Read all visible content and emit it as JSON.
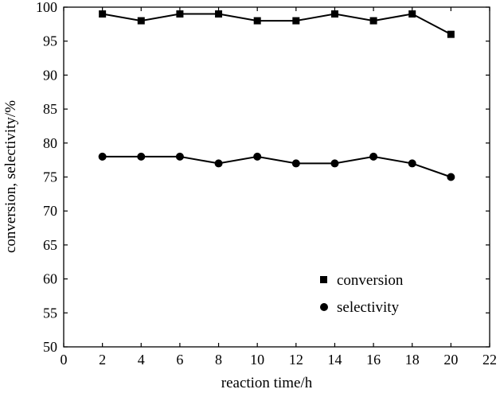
{
  "chart_data": {
    "type": "line",
    "title": "",
    "xlabel": "reaction time/h",
    "ylabel": "conversion, selectivity/%",
    "xlim": [
      0,
      22
    ],
    "ylim": [
      50,
      100
    ],
    "x_ticks": [
      0,
      2,
      4,
      6,
      8,
      10,
      12,
      14,
      16,
      18,
      20,
      22
    ],
    "y_ticks": [
      50,
      55,
      60,
      65,
      70,
      75,
      80,
      85,
      90,
      95,
      100
    ],
    "grid": false,
    "legend_position": "bottom-right",
    "x": [
      2,
      4,
      6,
      8,
      10,
      12,
      14,
      16,
      18,
      20
    ],
    "series": [
      {
        "name": "conversion",
        "marker": "square",
        "color": "#000000",
        "values": [
          99,
          98,
          99,
          99,
          98,
          98,
          99,
          98,
          99,
          96
        ]
      },
      {
        "name": "selectivity",
        "marker": "circle",
        "color": "#000000",
        "values": [
          78,
          78,
          78,
          77,
          78,
          77,
          77,
          78,
          77,
          75
        ]
      }
    ]
  }
}
